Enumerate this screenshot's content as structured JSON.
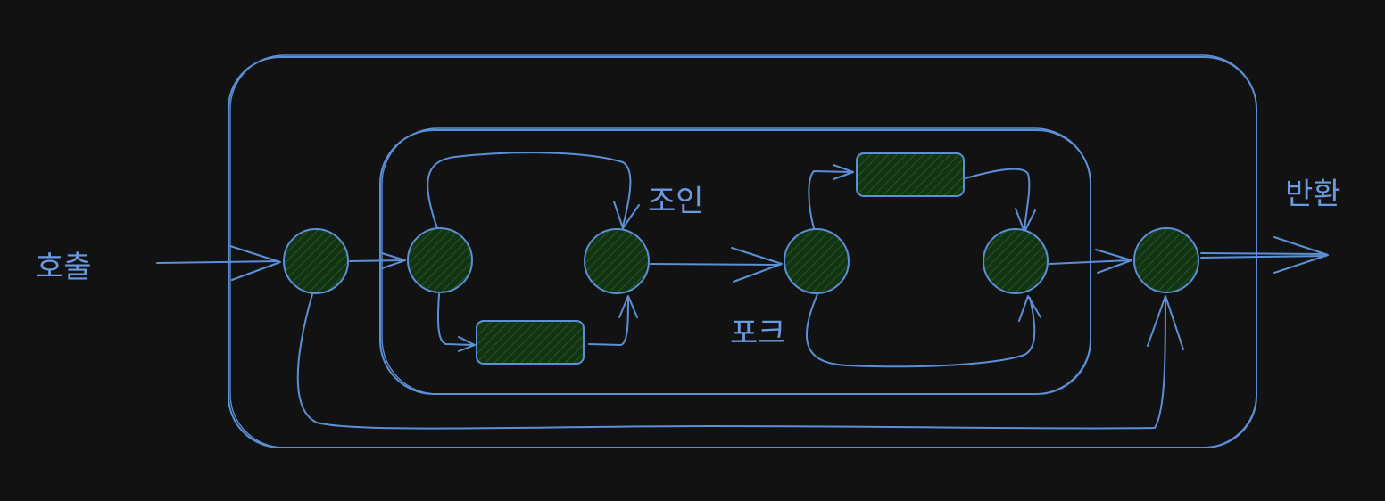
{
  "diagram": {
    "labels": {
      "call": "호출",
      "join": "조인",
      "fork": "포크",
      "return": "반환"
    },
    "colors": {
      "background": "#121212",
      "stroke": "#5b8fd6",
      "node_fill": "#143314",
      "hatch": "#1f5a1f"
    }
  }
}
